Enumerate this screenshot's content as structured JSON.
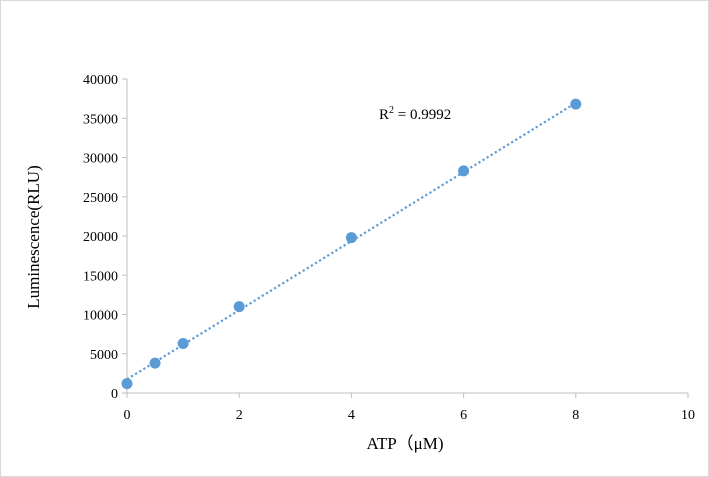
{
  "chart_data": {
    "type": "scatter",
    "title": "",
    "xlabel": "ATP（μM)",
    "ylabel": "Luminescence(RLU)",
    "xlim": [
      0,
      10
    ],
    "ylim": [
      0,
      40000
    ],
    "x_ticks": [
      0,
      2,
      4,
      6,
      8,
      10
    ],
    "y_ticks": [
      0,
      5000,
      10000,
      15000,
      20000,
      25000,
      30000,
      35000,
      40000
    ],
    "grid": false,
    "legend": "none",
    "series": [
      {
        "x": [
          0,
          0.5,
          1,
          2,
          4,
          6,
          8
        ],
        "y": [
          1200,
          3800,
          6300,
          11000,
          19800,
          28300,
          36800
        ],
        "color": "#5b9bd5"
      }
    ],
    "trendline": {
      "style": "dotted",
      "color": "#5b9bd5",
      "x": [
        0,
        8
      ],
      "y": [
        1750,
        36950
      ]
    },
    "annotation": {
      "r_label": "R",
      "r_sup": "2",
      "r_value": " = 0.9992"
    }
  }
}
